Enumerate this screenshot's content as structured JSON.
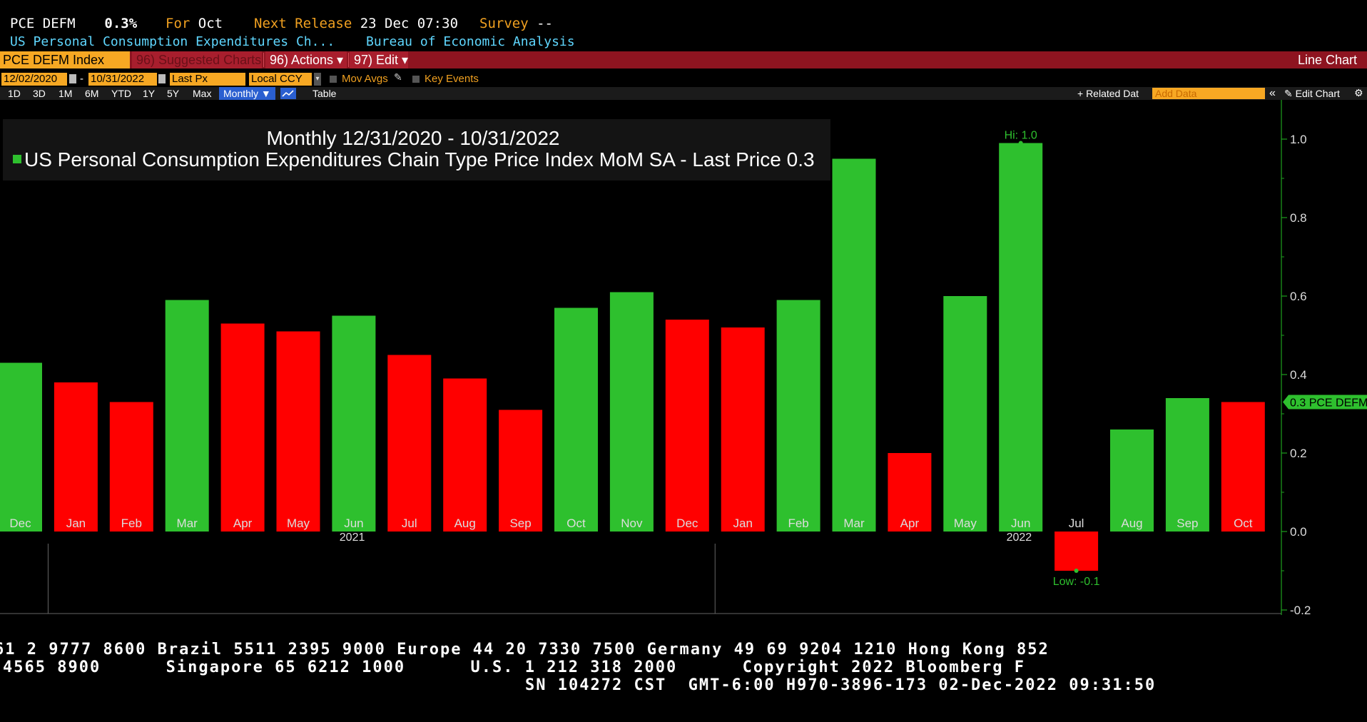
{
  "header": {
    "ticker": "PCE DEFM",
    "last_value": "0.3%",
    "for_label": "For",
    "for_value": "Oct",
    "next_release_label": "Next Release",
    "next_release_value": "23 Dec 07:30",
    "survey_label": "Survey",
    "survey_value": "--",
    "description": "US Personal Consumption Expenditures Ch...",
    "source": "Bureau of Economic Analysis"
  },
  "toolbar": {
    "index_label": "PCE DEFM Index",
    "suggested_label": "96) Suggested Charts",
    "actions_label": "96) Actions ▾",
    "edit_label": "97) Edit ▾",
    "chart_type": "Line Chart"
  },
  "controls": {
    "start_date": "12/02/2020",
    "dash": "-",
    "end_date": "10/31/2022",
    "price_field": "Last Px",
    "currency": "Local CCY",
    "mov_avgs": "Mov Avgs",
    "key_events": "Key Events"
  },
  "ranges": {
    "items": [
      "1D",
      "3D",
      "1M",
      "6M",
      "YTD",
      "1Y",
      "5Y",
      "Max"
    ],
    "period": "Monthly ▼",
    "table": "Table",
    "related_data": "+ Related Dat",
    "add_data_placeholder": "Add Data",
    "collapse": "«",
    "edit_chart": "Edit Chart"
  },
  "chart_data": {
    "type": "bar",
    "title": "Monthly 12/31/2020 - 10/31/2022",
    "series": [
      {
        "name": "US Personal Consumption Expenditures Chain Type Price Index MoM SA - Last Price",
        "last_price": "0.3",
        "color": "#2ec02e",
        "values": [
          0.43,
          0.38,
          0.33,
          0.59,
          0.53,
          0.51,
          0.55,
          0.45,
          0.39,
          0.31,
          0.57,
          0.61,
          0.54,
          0.52,
          0.59,
          0.95,
          0.2,
          0.6,
          0.99,
          -0.1,
          0.26,
          0.34,
          0.33
        ]
      }
    ],
    "categories": [
      "Dec",
      "Jan",
      "Feb",
      "Mar",
      "Apr",
      "May",
      "Jun",
      "Jul",
      "Aug",
      "Sep",
      "Oct",
      "Nov",
      "Dec",
      "Jan",
      "Feb",
      "Mar",
      "Apr",
      "May",
      "Jun",
      "Jul",
      "Aug",
      "Sep",
      "Oct"
    ],
    "year_labels": [
      {
        "label": "2021",
        "category_index": 6
      },
      {
        "label": "2022",
        "category_index": 18
      }
    ],
    "up_color": "#2ec02e",
    "down_color": "#ff0000",
    "yticks": [
      "1.0",
      "0.8",
      "0.6",
      "0.4",
      "0.2",
      "0.0",
      "-0.2"
    ],
    "ylim": [
      -0.2,
      1.0
    ],
    "hi_label": "Hi: 1.0",
    "hi_index": 18,
    "low_label": "Low: -0.1",
    "low_index": 19,
    "last_tag": "0.3 PCE DEFM",
    "last_value": 0.33
  },
  "footer": {
    "line1": "61 2 9777 8600 Brazil 5511 2395 9000 Europe 44 20 7330 7500 Germany 49 69 9204 1210 Hong Kong 852",
    "line2": "4565 8900      Singapore 65 6212 1000      U.S. 1 212 318 2000      Copyright 2022 Bloomberg F",
    "line3": "SN 104272 CST  GMT-6:00 H970-3896-173 02-Dec-2022 09:31:50"
  }
}
